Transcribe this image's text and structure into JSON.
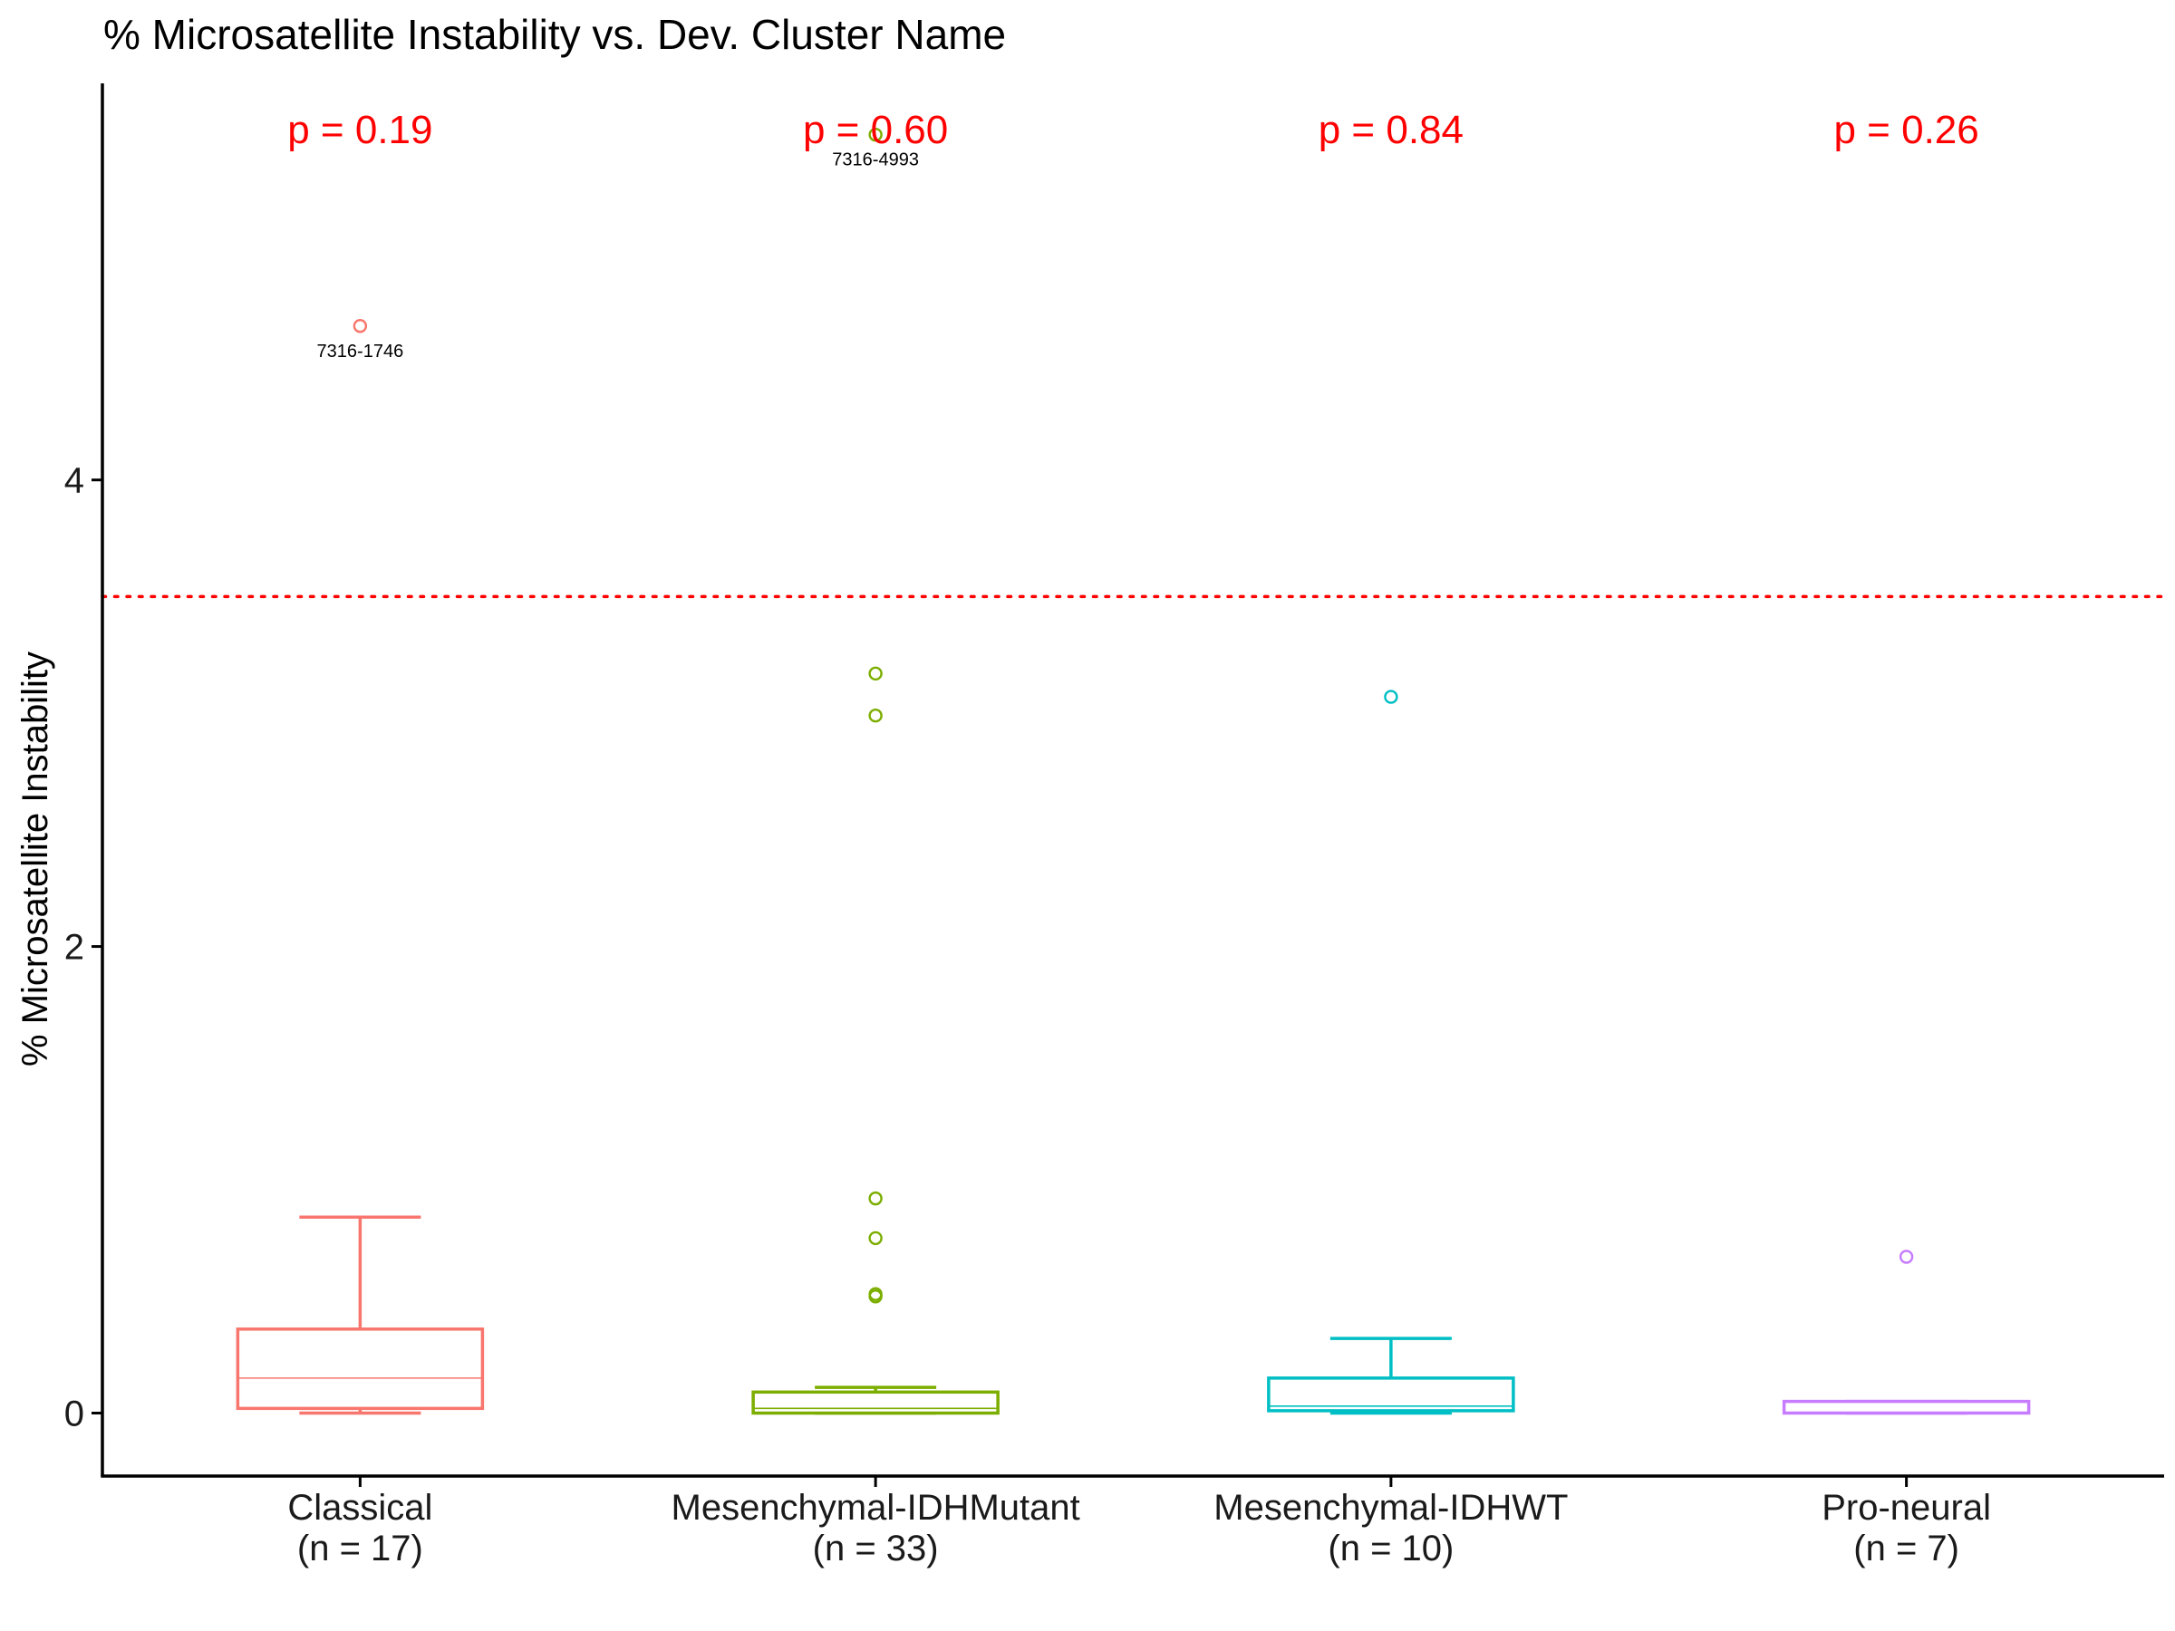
{
  "chart_data": {
    "type": "boxplot",
    "title": "% Microsatellite Instability vs. Dev. Cluster Name",
    "xlabel": "",
    "ylabel": "% Microsatellite Instability",
    "ylim": [
      -0.27,
      5.7
    ],
    "yticks": [
      0,
      2,
      4
    ],
    "grid": false,
    "legend": "none",
    "threshold": {
      "value": 3.5,
      "color": "#ff0000",
      "style": "dotted"
    },
    "groups": [
      {
        "category": "Classical",
        "n_label": "(n = 17)",
        "color": "#f8766d",
        "p_value": "p = 0.19",
        "box": {
          "min": 0.0,
          "q1": 0.02,
          "median": 0.15,
          "q3": 0.36,
          "max": 0.84
        },
        "outliers": [
          {
            "y": 4.66,
            "label": "7316-1746"
          }
        ]
      },
      {
        "category": "Mesenchymal-IDHMutant",
        "n_label": "(n = 33)",
        "color": "#7cae00",
        "p_value": "p = 0.60",
        "box": {
          "min": 0.0,
          "q1": 0.0,
          "median": 0.02,
          "q3": 0.09,
          "max": 0.11
        },
        "outliers": [
          {
            "y": 5.48,
            "label": "7316-4993"
          },
          {
            "y": 3.17,
            "label": ""
          },
          {
            "y": 2.99,
            "label": ""
          },
          {
            "y": 0.92,
            "label": ""
          },
          {
            "y": 0.75,
            "label": ""
          },
          {
            "y": 0.51,
            "label": ""
          },
          {
            "y": 0.5,
            "label": ""
          }
        ]
      },
      {
        "category": "Mesenchymal-IDHWT",
        "n_label": "(n = 10)",
        "color": "#00bfc4",
        "p_value": "p = 0.84",
        "box": {
          "min": 0.0,
          "q1": 0.01,
          "median": 0.03,
          "q3": 0.15,
          "max": 0.32
        },
        "outliers": [
          {
            "y": 3.07,
            "label": ""
          }
        ]
      },
      {
        "category": "Pro-neural",
        "n_label": "(n = 7)",
        "color": "#c77cff",
        "p_value": "p = 0.26",
        "box": {
          "min": 0.0,
          "q1": 0.0,
          "median": 0.0,
          "q3": 0.05,
          "max": 0.05
        },
        "outliers": [
          {
            "y": 0.67,
            "label": ""
          }
        ]
      }
    ]
  }
}
